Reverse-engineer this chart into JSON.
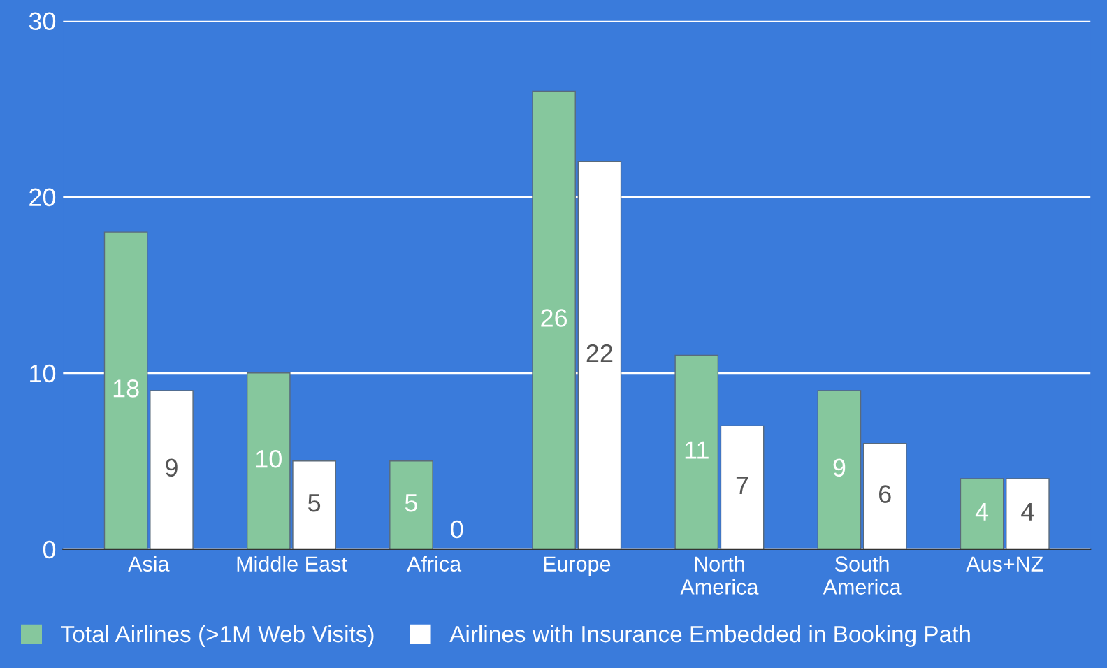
{
  "chart_data": {
    "type": "bar",
    "categories": [
      "Asia",
      "Middle East",
      "Africa",
      "Europe",
      "North\nAmerica",
      "South\nAmerica",
      "Aus+NZ"
    ],
    "series": [
      {
        "name": "Total Airlines (>1M Web Visits)",
        "color": "#86c79d",
        "values": [
          18,
          10,
          5,
          26,
          11,
          9,
          4
        ]
      },
      {
        "name": "Airlines with Insurance Embedded in Booking Path",
        "color": "#ffffff",
        "values": [
          9,
          5,
          0,
          22,
          7,
          6,
          4
        ]
      }
    ],
    "ylim": [
      0,
      30
    ],
    "yticks": [
      0,
      10,
      20,
      30
    ],
    "grid": "y",
    "legend": "bottom left",
    "data_labels": true
  }
}
